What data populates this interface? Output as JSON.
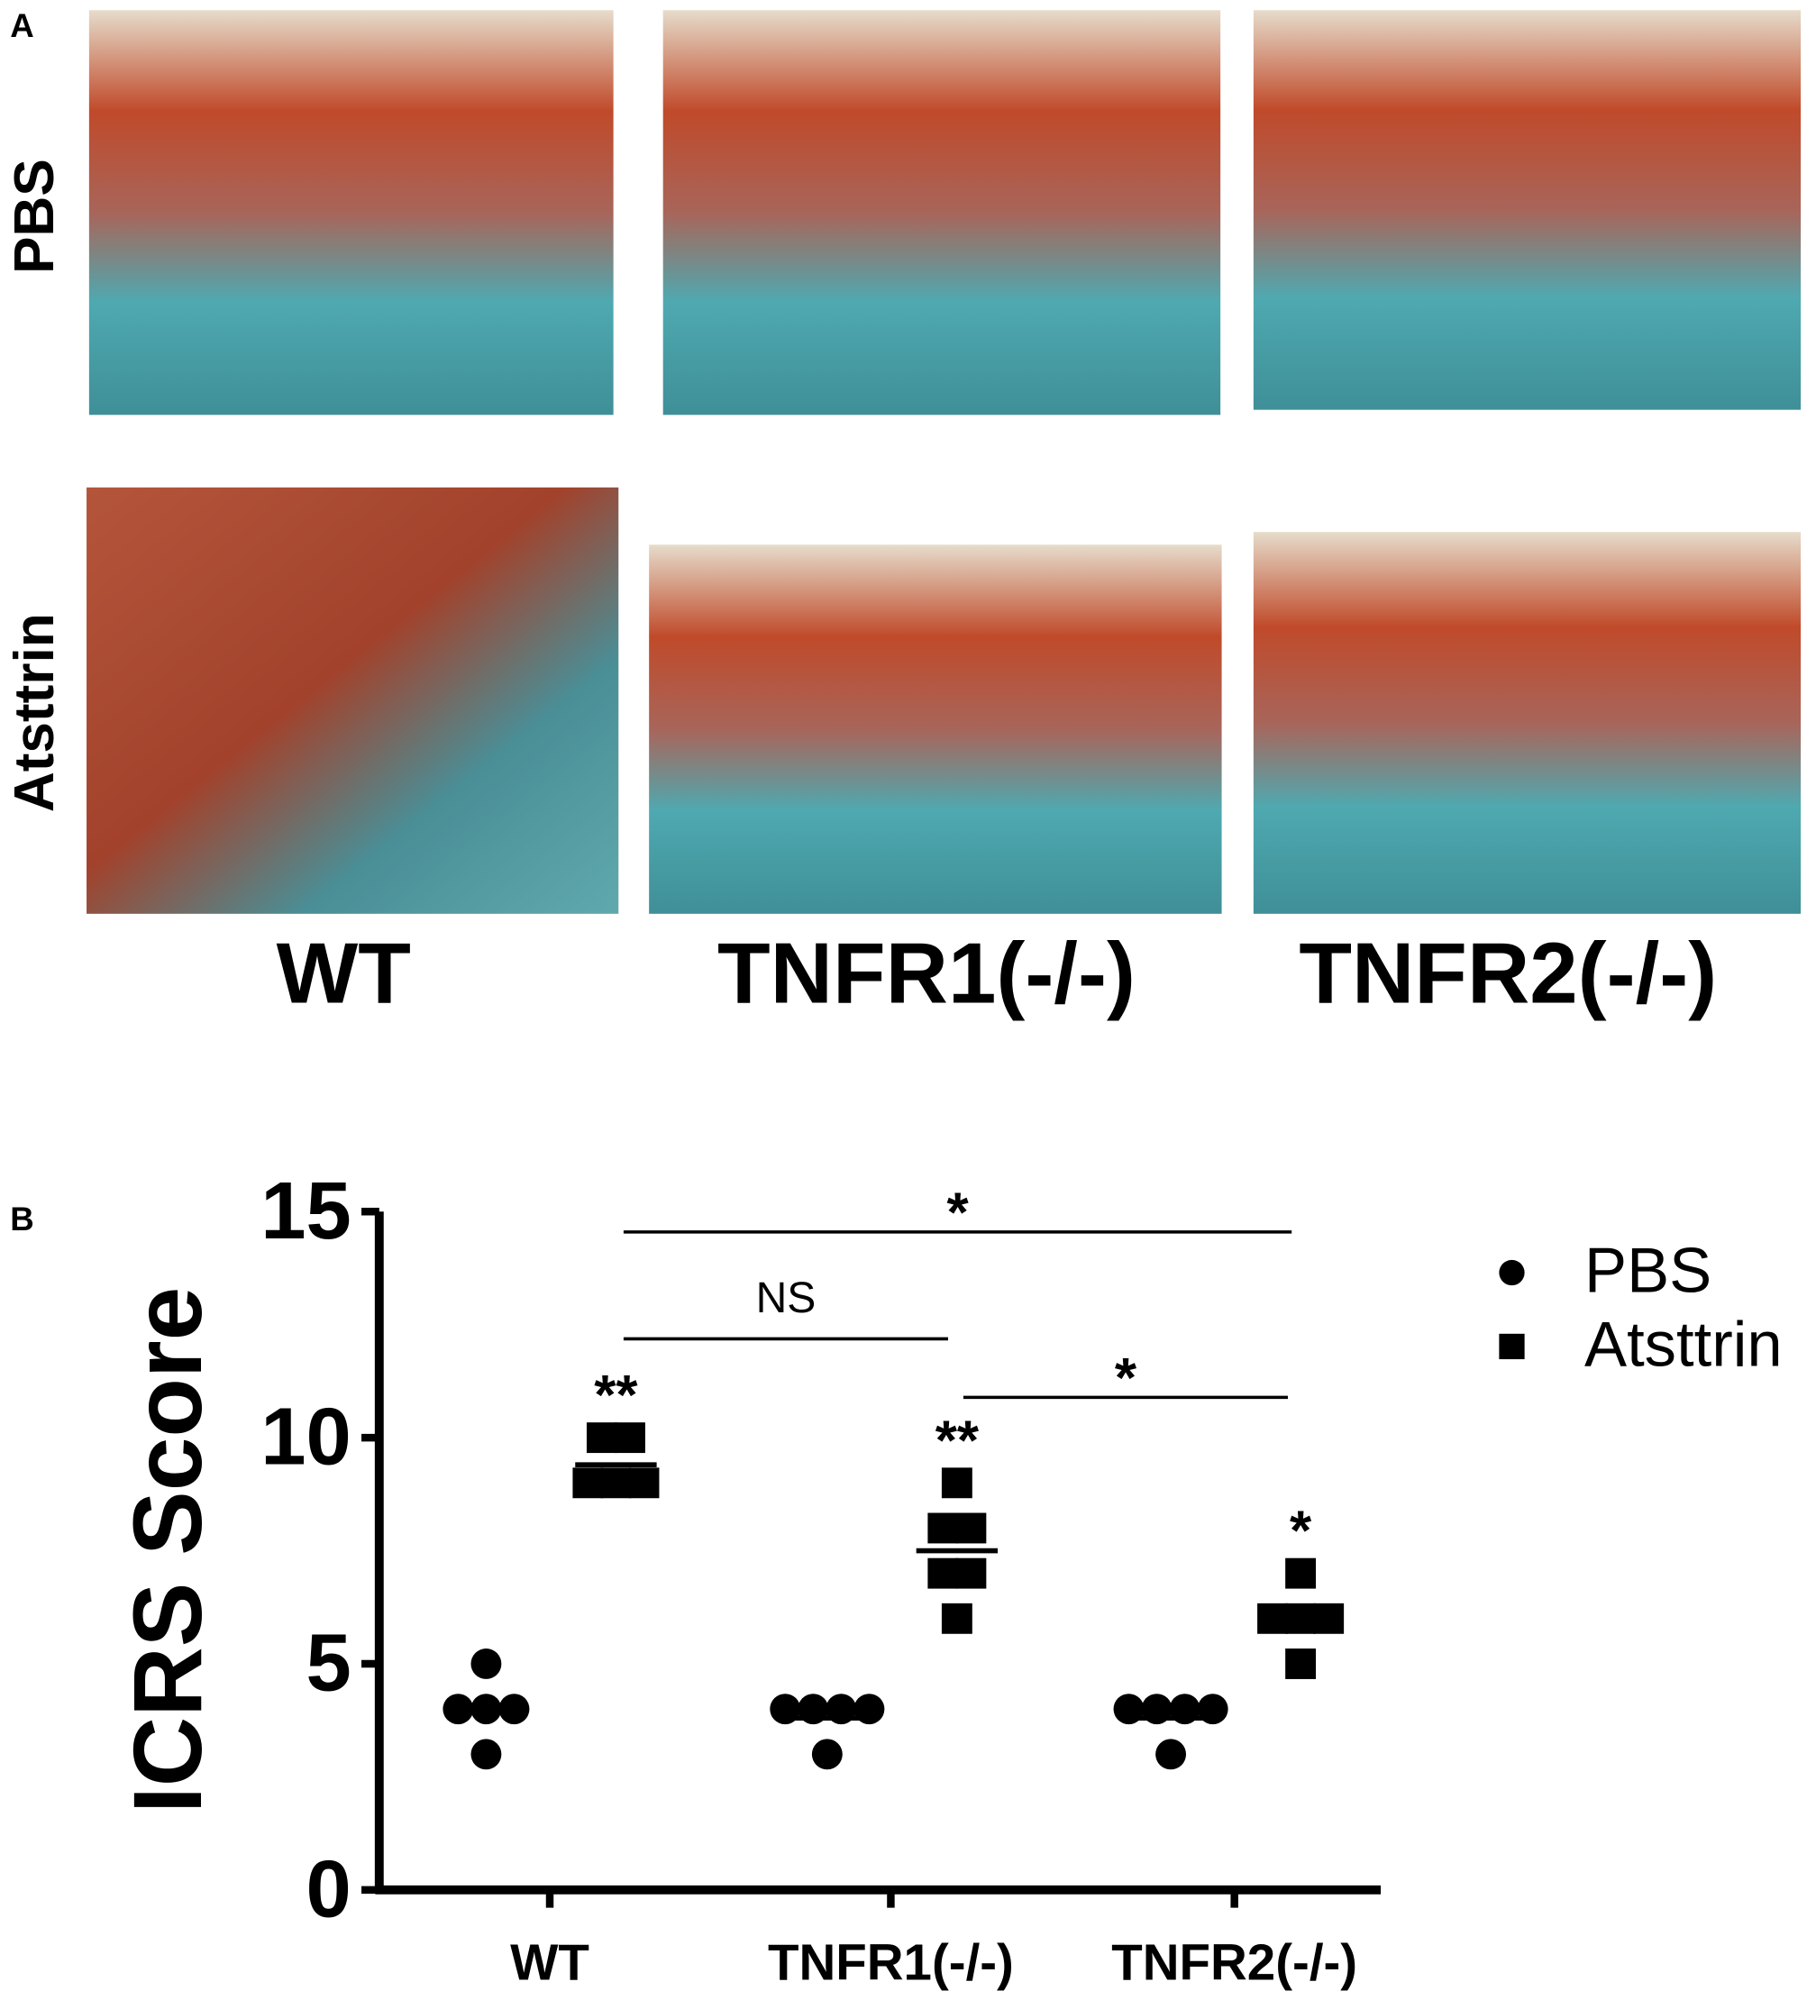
{
  "figure": {
    "panel_a_label": "A",
    "panel_b_label": "B",
    "row_labels": [
      "PBS",
      "Atsttrin"
    ],
    "column_labels": [
      "WT",
      "TNFR1(-/-)",
      "TNFR2(-/-)"
    ]
  },
  "chart_data": {
    "type": "dotplot",
    "y_label": "ICRS Score",
    "categories": [
      "WT",
      "TNFR1(-/-)",
      "TNFR2(-/-)"
    ],
    "ylim": [
      0,
      15
    ],
    "yticks": [
      0,
      5,
      10,
      15
    ],
    "legend": "top-right",
    "series": [
      {
        "name": "PBS",
        "marker": "circle",
        "color": "#000000",
        "values": [
          [
            5,
            4,
            4,
            4,
            3
          ],
          [
            4,
            4,
            4,
            4,
            3
          ],
          [
            4,
            4,
            4,
            4,
            3
          ]
        ],
        "means": [
          4,
          3.8,
          3.8
        ]
      },
      {
        "name": "Atsttrin",
        "marker": "square",
        "color": "#000000",
        "values": [
          [
            10,
            10,
            9,
            9,
            9
          ],
          [
            9,
            8,
            8,
            7,
            7,
            6
          ],
          [
            7,
            6,
            6,
            6,
            5
          ]
        ],
        "means": [
          9.4,
          7.5,
          6.0
        ],
        "annotations": [
          "**",
          "**",
          "*"
        ]
      }
    ],
    "comparisons": [
      "*",
      "NS",
      "*"
    ]
  }
}
